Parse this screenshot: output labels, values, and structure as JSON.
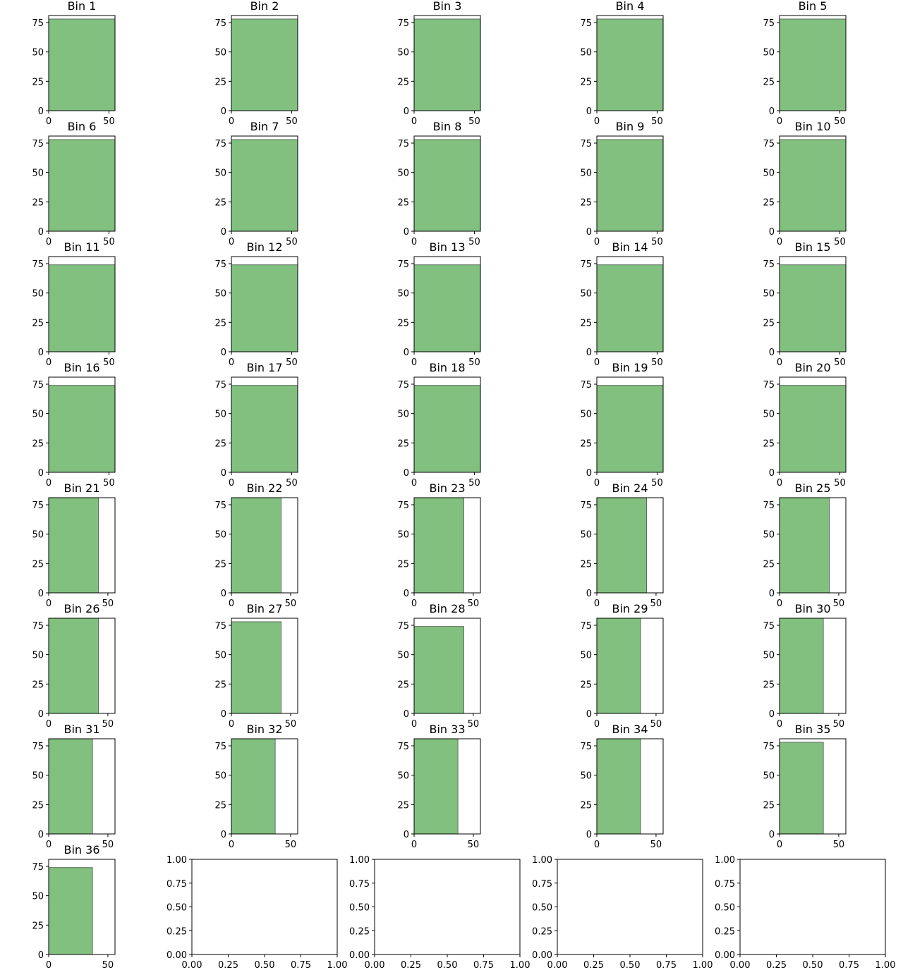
{
  "colors": {
    "bar_fill": "#81c07f",
    "bar_edge": "#5e6d5e",
    "axes": "#000000"
  },
  "chart_data": [
    {
      "type": "bar",
      "title": "Bin 1",
      "bar": {
        "x0": 0,
        "width": 55,
        "height": 78
      },
      "xlim": [
        0,
        55
      ],
      "ylim": [
        0,
        81
      ],
      "xticks": [
        0,
        50
      ],
      "yticks": [
        0,
        25,
        50,
        75
      ]
    },
    {
      "type": "bar",
      "title": "Bin 2",
      "bar": {
        "x0": 0,
        "width": 55,
        "height": 78
      },
      "xlim": [
        0,
        55
      ],
      "ylim": [
        0,
        81
      ],
      "xticks": [
        0,
        50
      ],
      "yticks": [
        0,
        25,
        50,
        75
      ]
    },
    {
      "type": "bar",
      "title": "Bin 3",
      "bar": {
        "x0": 0,
        "width": 55,
        "height": 78
      },
      "xlim": [
        0,
        55
      ],
      "ylim": [
        0,
        81
      ],
      "xticks": [
        0,
        50
      ],
      "yticks": [
        0,
        25,
        50,
        75
      ]
    },
    {
      "type": "bar",
      "title": "Bin 4",
      "bar": {
        "x0": 0,
        "width": 55,
        "height": 78
      },
      "xlim": [
        0,
        55
      ],
      "ylim": [
        0,
        81
      ],
      "xticks": [
        0,
        50
      ],
      "yticks": [
        0,
        25,
        50,
        75
      ]
    },
    {
      "type": "bar",
      "title": "Bin 5",
      "bar": {
        "x0": 0,
        "width": 55,
        "height": 78
      },
      "xlim": [
        0,
        55
      ],
      "ylim": [
        0,
        81
      ],
      "xticks": [
        0,
        50
      ],
      "yticks": [
        0,
        25,
        50,
        75
      ]
    },
    {
      "type": "bar",
      "title": "Bin 6",
      "bar": {
        "x0": 0,
        "width": 55,
        "height": 78
      },
      "xlim": [
        0,
        55
      ],
      "ylim": [
        0,
        81
      ],
      "xticks": [
        0,
        50
      ],
      "yticks": [
        0,
        25,
        50,
        75
      ]
    },
    {
      "type": "bar",
      "title": "Bin 7",
      "bar": {
        "x0": 0,
        "width": 55,
        "height": 78
      },
      "xlim": [
        0,
        55
      ],
      "ylim": [
        0,
        81
      ],
      "xticks": [
        0,
        50
      ],
      "yticks": [
        0,
        25,
        50,
        75
      ]
    },
    {
      "type": "bar",
      "title": "Bin 8",
      "bar": {
        "x0": 0,
        "width": 55,
        "height": 78
      },
      "xlim": [
        0,
        55
      ],
      "ylim": [
        0,
        81
      ],
      "xticks": [
        0,
        50
      ],
      "yticks": [
        0,
        25,
        50,
        75
      ]
    },
    {
      "type": "bar",
      "title": "Bin 9",
      "bar": {
        "x0": 0,
        "width": 55,
        "height": 78
      },
      "xlim": [
        0,
        55
      ],
      "ylim": [
        0,
        81
      ],
      "xticks": [
        0,
        50
      ],
      "yticks": [
        0,
        25,
        50,
        75
      ]
    },
    {
      "type": "bar",
      "title": "Bin 10",
      "bar": {
        "x0": 0,
        "width": 55,
        "height": 78
      },
      "xlim": [
        0,
        55
      ],
      "ylim": [
        0,
        81
      ],
      "xticks": [
        0,
        50
      ],
      "yticks": [
        0,
        25,
        50,
        75
      ]
    },
    {
      "type": "bar",
      "title": "Bin 11",
      "bar": {
        "x0": 0,
        "width": 55,
        "height": 74
      },
      "xlim": [
        0,
        55
      ],
      "ylim": [
        0,
        81
      ],
      "xticks": [
        0,
        50
      ],
      "yticks": [
        0,
        25,
        50,
        75
      ]
    },
    {
      "type": "bar",
      "title": "Bin 12",
      "bar": {
        "x0": 0,
        "width": 55,
        "height": 74
      },
      "xlim": [
        0,
        55
      ],
      "ylim": [
        0,
        81
      ],
      "xticks": [
        0,
        50
      ],
      "yticks": [
        0,
        25,
        50,
        75
      ]
    },
    {
      "type": "bar",
      "title": "Bin 13",
      "bar": {
        "x0": 0,
        "width": 55,
        "height": 74
      },
      "xlim": [
        0,
        55
      ],
      "ylim": [
        0,
        81
      ],
      "xticks": [
        0,
        50
      ],
      "yticks": [
        0,
        25,
        50,
        75
      ]
    },
    {
      "type": "bar",
      "title": "Bin 14",
      "bar": {
        "x0": 0,
        "width": 55,
        "height": 74
      },
      "xlim": [
        0,
        55
      ],
      "ylim": [
        0,
        81
      ],
      "xticks": [
        0,
        50
      ],
      "yticks": [
        0,
        25,
        50,
        75
      ]
    },
    {
      "type": "bar",
      "title": "Bin 15",
      "bar": {
        "x0": 0,
        "width": 55,
        "height": 74
      },
      "xlim": [
        0,
        55
      ],
      "ylim": [
        0,
        81
      ],
      "xticks": [
        0,
        50
      ],
      "yticks": [
        0,
        25,
        50,
        75
      ]
    },
    {
      "type": "bar",
      "title": "Bin 16",
      "bar": {
        "x0": 0,
        "width": 55,
        "height": 74
      },
      "xlim": [
        0,
        55
      ],
      "ylim": [
        0,
        81
      ],
      "xticks": [
        0,
        50
      ],
      "yticks": [
        0,
        25,
        50,
        75
      ]
    },
    {
      "type": "bar",
      "title": "Bin 17",
      "bar": {
        "x0": 0,
        "width": 55,
        "height": 74
      },
      "xlim": [
        0,
        55
      ],
      "ylim": [
        0,
        81
      ],
      "xticks": [
        0,
        50
      ],
      "yticks": [
        0,
        25,
        50,
        75
      ]
    },
    {
      "type": "bar",
      "title": "Bin 18",
      "bar": {
        "x0": 0,
        "width": 55,
        "height": 74
      },
      "xlim": [
        0,
        55
      ],
      "ylim": [
        0,
        81
      ],
      "xticks": [
        0,
        50
      ],
      "yticks": [
        0,
        25,
        50,
        75
      ]
    },
    {
      "type": "bar",
      "title": "Bin 19",
      "bar": {
        "x0": 0,
        "width": 55,
        "height": 74
      },
      "xlim": [
        0,
        55
      ],
      "ylim": [
        0,
        81
      ],
      "xticks": [
        0,
        50
      ],
      "yticks": [
        0,
        25,
        50,
        75
      ]
    },
    {
      "type": "bar",
      "title": "Bin 20",
      "bar": {
        "x0": 0,
        "width": 55,
        "height": 74
      },
      "xlim": [
        0,
        55
      ],
      "ylim": [
        0,
        81
      ],
      "xticks": [
        0,
        50
      ],
      "yticks": [
        0,
        25,
        50,
        75
      ]
    },
    {
      "type": "bar",
      "title": "Bin 21",
      "bar": {
        "x0": 0,
        "width": 42,
        "height": 81
      },
      "xlim": [
        0,
        56
      ],
      "ylim": [
        0,
        81
      ],
      "xticks": [
        0,
        50
      ],
      "yticks": [
        0,
        25,
        50,
        75
      ]
    },
    {
      "type": "bar",
      "title": "Bin 22",
      "bar": {
        "x0": 0,
        "width": 42,
        "height": 81
      },
      "xlim": [
        0,
        56
      ],
      "ylim": [
        0,
        81
      ],
      "xticks": [
        0,
        50
      ],
      "yticks": [
        0,
        25,
        50,
        75
      ]
    },
    {
      "type": "bar",
      "title": "Bin 23",
      "bar": {
        "x0": 0,
        "width": 42,
        "height": 81
      },
      "xlim": [
        0,
        56
      ],
      "ylim": [
        0,
        81
      ],
      "xticks": [
        0,
        50
      ],
      "yticks": [
        0,
        25,
        50,
        75
      ]
    },
    {
      "type": "bar",
      "title": "Bin 24",
      "bar": {
        "x0": 0,
        "width": 42,
        "height": 81
      },
      "xlim": [
        0,
        56
      ],
      "ylim": [
        0,
        81
      ],
      "xticks": [
        0,
        50
      ],
      "yticks": [
        0,
        25,
        50,
        75
      ]
    },
    {
      "type": "bar",
      "title": "Bin 25",
      "bar": {
        "x0": 0,
        "width": 42,
        "height": 81
      },
      "xlim": [
        0,
        56
      ],
      "ylim": [
        0,
        81
      ],
      "xticks": [
        0,
        50
      ],
      "yticks": [
        0,
        25,
        50,
        75
      ]
    },
    {
      "type": "bar",
      "title": "Bin 26",
      "bar": {
        "x0": 0,
        "width": 42,
        "height": 81
      },
      "xlim": [
        0,
        56
      ],
      "ylim": [
        0,
        81
      ],
      "xticks": [
        0,
        50
      ],
      "yticks": [
        0,
        25,
        50,
        75
      ]
    },
    {
      "type": "bar",
      "title": "Bin 27",
      "bar": {
        "x0": 0,
        "width": 42,
        "height": 78
      },
      "xlim": [
        0,
        56
      ],
      "ylim": [
        0,
        81
      ],
      "xticks": [
        0,
        50
      ],
      "yticks": [
        0,
        25,
        50,
        75
      ]
    },
    {
      "type": "bar",
      "title": "Bin 28",
      "bar": {
        "x0": 0,
        "width": 42,
        "height": 74
      },
      "xlim": [
        0,
        56
      ],
      "ylim": [
        0,
        81
      ],
      "xticks": [
        0,
        50
      ],
      "yticks": [
        0,
        25,
        50,
        75
      ]
    },
    {
      "type": "bar",
      "title": "Bin 29",
      "bar": {
        "x0": 0,
        "width": 37,
        "height": 81
      },
      "xlim": [
        0,
        56
      ],
      "ylim": [
        0,
        81
      ],
      "xticks": [
        0,
        50
      ],
      "yticks": [
        0,
        25,
        50,
        75
      ]
    },
    {
      "type": "bar",
      "title": "Bin 30",
      "bar": {
        "x0": 0,
        "width": 37,
        "height": 81
      },
      "xlim": [
        0,
        56
      ],
      "ylim": [
        0,
        81
      ],
      "xticks": [
        0,
        50
      ],
      "yticks": [
        0,
        25,
        50,
        75
      ]
    },
    {
      "type": "bar",
      "title": "Bin 31",
      "bar": {
        "x0": 0,
        "width": 37,
        "height": 81
      },
      "xlim": [
        0,
        56
      ],
      "ylim": [
        0,
        81
      ],
      "xticks": [
        0,
        50
      ],
      "yticks": [
        0,
        25,
        50,
        75
      ]
    },
    {
      "type": "bar",
      "title": "Bin 32",
      "bar": {
        "x0": 0,
        "width": 37,
        "height": 81
      },
      "xlim": [
        0,
        56
      ],
      "ylim": [
        0,
        81
      ],
      "xticks": [
        0,
        50
      ],
      "yticks": [
        0,
        25,
        50,
        75
      ]
    },
    {
      "type": "bar",
      "title": "Bin 33",
      "bar": {
        "x0": 0,
        "width": 37,
        "height": 81
      },
      "xlim": [
        0,
        56
      ],
      "ylim": [
        0,
        81
      ],
      "xticks": [
        0,
        50
      ],
      "yticks": [
        0,
        25,
        50,
        75
      ]
    },
    {
      "type": "bar",
      "title": "Bin 34",
      "bar": {
        "x0": 0,
        "width": 37,
        "height": 81
      },
      "xlim": [
        0,
        56
      ],
      "ylim": [
        0,
        81
      ],
      "xticks": [
        0,
        50
      ],
      "yticks": [
        0,
        25,
        50,
        75
      ]
    },
    {
      "type": "bar",
      "title": "Bin 35",
      "bar": {
        "x0": 0,
        "width": 37,
        "height": 78
      },
      "xlim": [
        0,
        56
      ],
      "ylim": [
        0,
        81
      ],
      "xticks": [
        0,
        50
      ],
      "yticks": [
        0,
        25,
        50,
        75
      ]
    },
    {
      "type": "bar",
      "title": "Bin 36",
      "bar": {
        "x0": 0,
        "width": 37,
        "height": 74
      },
      "xlim": [
        0,
        56
      ],
      "ylim": [
        0,
        81
      ],
      "xticks": [
        0,
        50
      ],
      "yticks": [
        0,
        25,
        50,
        75
      ]
    },
    {
      "type": "empty",
      "title": "",
      "xlim": [
        0,
        1
      ],
      "ylim": [
        0,
        1
      ],
      "xticks": [
        "0.00",
        "0.25",
        "0.50",
        "0.75",
        "1.00"
      ],
      "yticks": [
        "0.00",
        "0.25",
        "0.50",
        "0.75",
        "1.00"
      ]
    },
    {
      "type": "empty",
      "title": "",
      "xlim": [
        0,
        1
      ],
      "ylim": [
        0,
        1
      ],
      "xticks": [
        "0.00",
        "0.25",
        "0.50",
        "0.75",
        "1.00"
      ],
      "yticks": [
        "0.00",
        "0.25",
        "0.50",
        "0.75",
        "1.00"
      ]
    },
    {
      "type": "empty",
      "title": "",
      "xlim": [
        0,
        1
      ],
      "ylim": [
        0,
        1
      ],
      "xticks": [
        "0.00",
        "0.25",
        "0.50",
        "0.75",
        "1.00"
      ],
      "yticks": [
        "0.00",
        "0.25",
        "0.50",
        "0.75",
        "1.00"
      ]
    },
    {
      "type": "empty",
      "title": "",
      "xlim": [
        0,
        1
      ],
      "ylim": [
        0,
        1
      ],
      "xticks": [
        "0.00",
        "0.25",
        "0.50",
        "0.75",
        "1.00"
      ],
      "yticks": [
        "0.00",
        "0.25",
        "0.50",
        "0.75",
        "1.00"
      ]
    }
  ]
}
